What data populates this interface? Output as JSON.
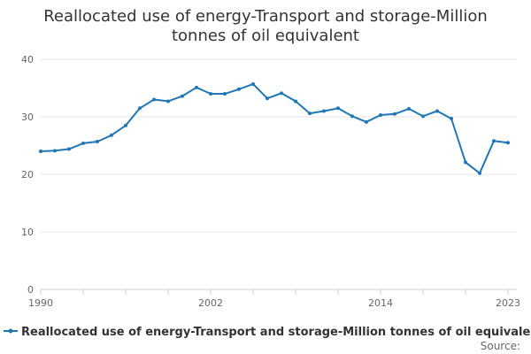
{
  "chart_data": {
    "type": "line",
    "title_lines": [
      "Reallocated use of energy-Transport and storage-Million",
      "tonnes of oil equivalent"
    ],
    "x": [
      1990,
      1991,
      1992,
      1993,
      1994,
      1995,
      1996,
      1997,
      1998,
      1999,
      2000,
      2001,
      2002,
      2003,
      2004,
      2005,
      2006,
      2007,
      2008,
      2009,
      2010,
      2011,
      2012,
      2013,
      2014,
      2015,
      2016,
      2017,
      2018,
      2019,
      2020,
      2021,
      2022,
      2023
    ],
    "x_tick_labels": [
      "1990",
      "2002",
      "2014",
      "2023"
    ],
    "xlim": [
      1990,
      2023
    ],
    "y_ticks": [
      0,
      10,
      20,
      30,
      40
    ],
    "ylim": [
      0,
      40
    ],
    "series": [
      {
        "name": "Reallocated use of energy-Transport and storage-Million tonnes of oil equivalent",
        "color": "#1f77b4",
        "values": [
          24.0,
          24.1,
          24.4,
          25.4,
          25.7,
          26.8,
          28.5,
          31.5,
          33.0,
          32.7,
          33.6,
          35.1,
          34.0,
          34.0,
          34.8,
          35.7,
          33.2,
          34.1,
          32.7,
          30.6,
          31.0,
          31.5,
          30.1,
          29.1,
          30.3,
          30.5,
          31.4,
          30.1,
          31.0,
          29.7,
          22.1,
          20.2,
          25.8,
          25.5
        ]
      }
    ],
    "grid": true,
    "legend_position": "bottom"
  },
  "source_label": "Source:"
}
